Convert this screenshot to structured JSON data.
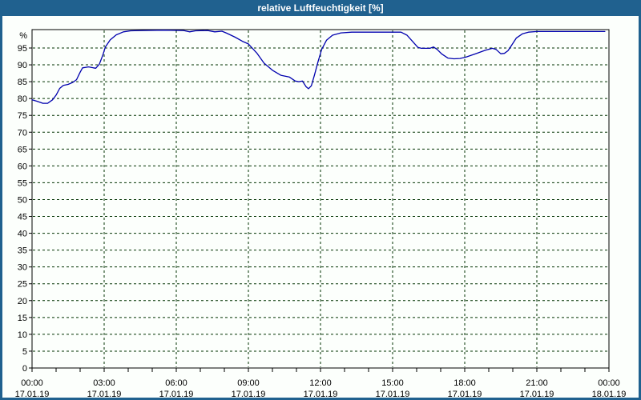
{
  "window": {
    "title": "relative Luftfeuchtigkeit [%]"
  },
  "colors": {
    "title_bar": "#20618F",
    "window_border": "#20618F",
    "title_text": "#FFFFFF",
    "plot_background": "#FCFFFC",
    "grid": "#003200",
    "axis": "#000000",
    "line": "#0000AE"
  },
  "chart_data": {
    "type": "line",
    "title": "relative Luftfeuchtigkeit [%]",
    "ylabel": "%",
    "unit_label": "%",
    "ylim": [
      0,
      100.5
    ],
    "grid": "dashed",
    "legend_position": "none",
    "y_ticks": [
      0,
      5,
      10,
      15,
      20,
      25,
      30,
      35,
      40,
      45,
      50,
      55,
      60,
      65,
      70,
      75,
      80,
      85,
      90,
      95
    ],
    "x_ticks": [
      {
        "hour": 0,
        "time": "00:00",
        "date": "17.01.19"
      },
      {
        "hour": 3,
        "time": "03:00",
        "date": "17.01.19"
      },
      {
        "hour": 6,
        "time": "06:00",
        "date": "17.01.19"
      },
      {
        "hour": 9,
        "time": "09:00",
        "date": "17.01.19"
      },
      {
        "hour": 12,
        "time": "12:00",
        "date": "17.01.19"
      },
      {
        "hour": 15,
        "time": "15:00",
        "date": "17.01.19"
      },
      {
        "hour": 18,
        "time": "18:00",
        "date": "17.01.19"
      },
      {
        "hour": 21,
        "time": "21:00",
        "date": "17.01.19"
      },
      {
        "hour": 24,
        "time": "00:00",
        "date": "18.01.19"
      }
    ],
    "minor_x_tick_every_hours": 1,
    "series": [
      {
        "name": "relative Luftfeuchtigkeit",
        "unit": "%",
        "points": [
          [
            0.0,
            79.6
          ],
          [
            0.2,
            79.2
          ],
          [
            0.45,
            78.6
          ],
          [
            0.65,
            78.6
          ],
          [
            0.85,
            79.6
          ],
          [
            1.0,
            81.0
          ],
          [
            1.15,
            83.0
          ],
          [
            1.3,
            83.9
          ],
          [
            1.5,
            84.2
          ],
          [
            1.7,
            84.8
          ],
          [
            1.85,
            85.6
          ],
          [
            2.0,
            87.8
          ],
          [
            2.1,
            89.1
          ],
          [
            2.35,
            89.4
          ],
          [
            2.55,
            89.1
          ],
          [
            2.65,
            89.0
          ],
          [
            2.8,
            90.2
          ],
          [
            2.95,
            93.0
          ],
          [
            3.05,
            95.3
          ],
          [
            3.25,
            97.4
          ],
          [
            3.5,
            98.9
          ],
          [
            3.8,
            99.8
          ],
          [
            4.1,
            100.1
          ],
          [
            4.6,
            100.2
          ],
          [
            5.5,
            100.3
          ],
          [
            6.3,
            100.2
          ],
          [
            6.55,
            99.8
          ],
          [
            6.8,
            100.1
          ],
          [
            7.3,
            100.2
          ],
          [
            7.6,
            99.8
          ],
          [
            7.9,
            100.0
          ],
          [
            8.1,
            99.4
          ],
          [
            8.45,
            98.2
          ],
          [
            8.75,
            97.0
          ],
          [
            9.0,
            96.2
          ],
          [
            9.35,
            93.5
          ],
          [
            9.65,
            90.5
          ],
          [
            10.0,
            88.4
          ],
          [
            10.35,
            86.9
          ],
          [
            10.7,
            86.4
          ],
          [
            10.95,
            85.2
          ],
          [
            11.1,
            85.0
          ],
          [
            11.25,
            85.2
          ],
          [
            11.4,
            83.5
          ],
          [
            11.5,
            82.9
          ],
          [
            11.62,
            83.8
          ],
          [
            11.75,
            87.0
          ],
          [
            11.9,
            91.0
          ],
          [
            12.05,
            94.6
          ],
          [
            12.25,
            97.3
          ],
          [
            12.5,
            98.8
          ],
          [
            12.85,
            99.5
          ],
          [
            13.3,
            99.7
          ],
          [
            14.5,
            99.7
          ],
          [
            15.35,
            99.7
          ],
          [
            15.6,
            98.8
          ],
          [
            15.85,
            96.8
          ],
          [
            16.05,
            95.2
          ],
          [
            16.2,
            94.9
          ],
          [
            16.55,
            94.9
          ],
          [
            16.7,
            95.3
          ],
          [
            16.85,
            94.6
          ],
          [
            17.05,
            93.2
          ],
          [
            17.3,
            92.0
          ],
          [
            17.55,
            91.8
          ],
          [
            17.8,
            91.9
          ],
          [
            18.05,
            92.3
          ],
          [
            18.45,
            93.3
          ],
          [
            18.85,
            94.3
          ],
          [
            19.15,
            94.9
          ],
          [
            19.3,
            94.6
          ],
          [
            19.5,
            93.3
          ],
          [
            19.65,
            93.4
          ],
          [
            19.8,
            94.2
          ],
          [
            19.95,
            95.8
          ],
          [
            20.15,
            98.0
          ],
          [
            20.4,
            99.2
          ],
          [
            20.65,
            99.7
          ],
          [
            21.0,
            99.9
          ],
          [
            22.0,
            99.9
          ],
          [
            23.0,
            99.9
          ],
          [
            23.83,
            99.9
          ]
        ]
      }
    ]
  }
}
